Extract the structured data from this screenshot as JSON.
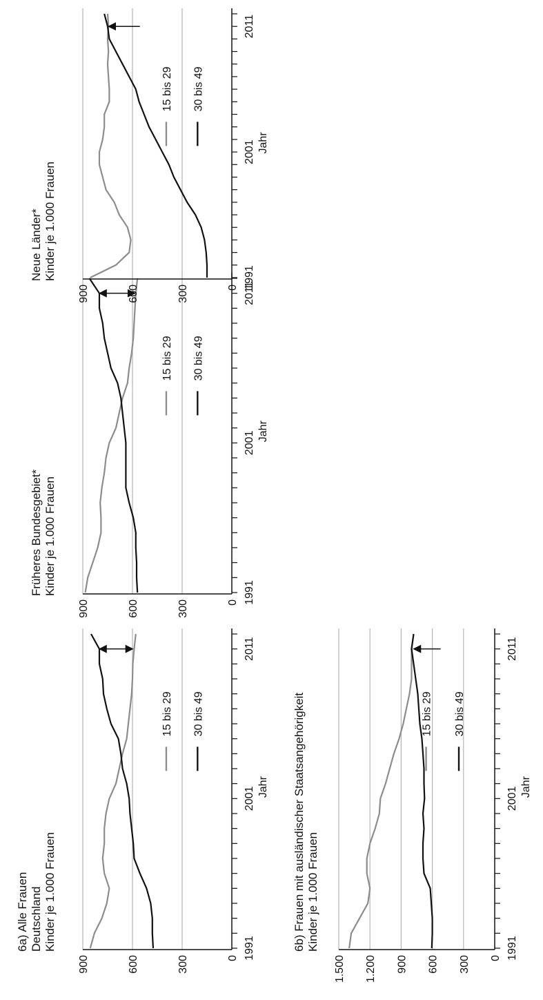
{
  "colors": {
    "series_15_29": "#8c8c8c",
    "series_30_49": "#111111",
    "grid": "#b5b5b5",
    "axis": "#111111"
  },
  "chart_data": [
    {
      "id": "chart-6a",
      "type": "line",
      "title": "6a) Alle Frauen",
      "subtitle": "Deutschland",
      "ylabel": "Kinder je 1.000 Frauen",
      "xlabel": "Jahr",
      "ylim": [
        0,
        900
      ],
      "yticks": [
        0,
        300,
        600,
        900
      ],
      "ytick_labels": [
        "0",
        "300",
        "600",
        "900"
      ],
      "grid": true,
      "xlim": [
        1991,
        2012
      ],
      "xticks_labeled": [
        1991,
        2001,
        2011
      ],
      "legend": {
        "position": "right",
        "entries": [
          {
            "label": "15 bis 29",
            "series": "15_29"
          },
          {
            "label": "30 bis 49",
            "series": "30_49"
          }
        ]
      },
      "arrow": {
        "year": 2011,
        "from": 800,
        "to": 598,
        "style": "double"
      },
      "series": [
        {
          "name": "15 bis 29",
          "key": "15_29",
          "x": [
            1991,
            1992,
            1993,
            1994,
            1995,
            1996,
            1997,
            1998,
            1999,
            2000,
            2001,
            2002,
            2003,
            2004,
            2005,
            2006,
            2007,
            2008,
            2009,
            2010,
            2011,
            2012
          ],
          "y": [
            855,
            830,
            785,
            755,
            740,
            770,
            780,
            770,
            770,
            760,
            740,
            700,
            680,
            660,
            635,
            625,
            615,
            605,
            600,
            598,
            590,
            580
          ]
        },
        {
          "name": "30 bis 49",
          "key": "30_49",
          "x": [
            1991,
            1992,
            1993,
            1994,
            1995,
            1996,
            1997,
            1998,
            1999,
            2000,
            2001,
            2002,
            2003,
            2004,
            2005,
            2006,
            2007,
            2008,
            2009,
            2010,
            2011,
            2012
          ],
          "y": [
            475,
            480,
            480,
            490,
            515,
            555,
            590,
            595,
            605,
            615,
            620,
            635,
            660,
            670,
            685,
            730,
            755,
            775,
            780,
            800,
            800,
            850
          ]
        }
      ]
    },
    {
      "id": "chart-west",
      "type": "line",
      "title": "Früheres Bundesgebiet*",
      "ylabel": "Kinder je 1.000 Frauen",
      "xlabel": "Jahr",
      "ylim": [
        0,
        900
      ],
      "yticks": [
        0,
        300,
        600,
        900
      ],
      "ytick_labels": [
        "0",
        "300",
        "600",
        "900"
      ],
      "grid": true,
      "xlim": [
        1991,
        2012
      ],
      "xticks_labeled": [
        1991,
        2001,
        2011
      ],
      "legend": {
        "position": "right",
        "entries": [
          {
            "label": "15 bis 29",
            "series": "15_29"
          },
          {
            "label": "30 bis 49",
            "series": "30_49"
          }
        ]
      },
      "arrow": {
        "year": 2011,
        "from": 800,
        "to": 585,
        "style": "double"
      },
      "series": [
        {
          "name": "15 bis 29",
          "key": "15_29",
          "x": [
            1991,
            1992,
            1993,
            1994,
            1995,
            1996,
            1997,
            1998,
            1999,
            2000,
            2001,
            2002,
            2003,
            2004,
            2005,
            2006,
            2007,
            2008,
            2009,
            2010,
            2011,
            2012
          ],
          "y": [
            885,
            870,
            840,
            810,
            790,
            790,
            795,
            785,
            770,
            760,
            740,
            700,
            680,
            660,
            630,
            620,
            605,
            595,
            590,
            585,
            580,
            570
          ]
        },
        {
          "name": "30 bis 49",
          "key": "30_49",
          "x": [
            1991,
            1992,
            1993,
            1994,
            1995,
            1996,
            1997,
            1998,
            1999,
            2000,
            2001,
            2002,
            2003,
            2004,
            2005,
            2006,
            2007,
            2008,
            2009,
            2010,
            2011,
            2012
          ],
          "y": [
            570,
            575,
            575,
            580,
            580,
            595,
            620,
            640,
            640,
            640,
            640,
            650,
            660,
            670,
            690,
            730,
            750,
            770,
            780,
            800,
            800,
            860
          ]
        }
      ]
    },
    {
      "id": "chart-ost",
      "type": "line",
      "title": "Neue Länder*",
      "ylabel": "Kinder je 1.000 Frauen",
      "xlabel": "Jahr",
      "ylim": [
        0,
        900
      ],
      "yticks": [
        0,
        300,
        600,
        900
      ],
      "ytick_labels": [
        "0",
        "300",
        "600",
        "900"
      ],
      "grid": true,
      "xlim": [
        1991,
        2012
      ],
      "xticks_labeled": [
        1991,
        2001,
        2011
      ],
      "legend": {
        "position": "right",
        "entries": [
          {
            "label": "15 bis 29",
            "series": "15_29"
          },
          {
            "label": "30 bis 49",
            "series": "30_49"
          }
        ]
      },
      "arrow": {
        "year": 2011,
        "from": 555,
        "to": 745,
        "style": "single"
      },
      "series": [
        {
          "name": "15 bis 29",
          "key": "15_29",
          "x": [
            1991,
            1992,
            1993,
            1994,
            1995,
            1996,
            1997,
            1998,
            1999,
            2000,
            2001,
            2002,
            2003,
            2004,
            2005,
            2006,
            2007,
            2008,
            2009,
            2010,
            2011,
            2012
          ],
          "y": [
            855,
            700,
            620,
            610,
            630,
            680,
            710,
            760,
            780,
            800,
            800,
            780,
            770,
            770,
            740,
            740,
            745,
            750,
            745,
            750,
            745,
            750
          ]
        },
        {
          "name": "30 bis 49",
          "key": "30_49",
          "x": [
            1991,
            1992,
            1993,
            1994,
            1995,
            1996,
            1997,
            1998,
            1999,
            2000,
            2001,
            2002,
            2003,
            2004,
            2005,
            2006,
            2007,
            2008,
            2009,
            2010,
            2011,
            2012
          ],
          "y": [
            150,
            150,
            155,
            165,
            185,
            220,
            270,
            310,
            350,
            380,
            420,
            460,
            500,
            530,
            560,
            580,
            620,
            660,
            700,
            740,
            750,
            770
          ]
        }
      ]
    },
    {
      "id": "chart-6b",
      "type": "line",
      "title": "6b) Frauen mit ausländischer Staatsangehörigkeit",
      "ylabel": "Kinder je 1.000 Frauen",
      "xlabel": "Jahr",
      "ylim": [
        0,
        1500
      ],
      "yticks": [
        0,
        300,
        600,
        900,
        1200,
        1500
      ],
      "ytick_labels": [
        "0",
        "300",
        "600",
        "900",
        "1.200",
        "1.500"
      ],
      "grid": true,
      "xlim": [
        1991,
        2012
      ],
      "xticks_labeled": [
        1991,
        2001,
        2011
      ],
      "legend": {
        "position": "right",
        "entries": [
          {
            "label": "15 bis 29",
            "series": "15_29"
          },
          {
            "label": "30 bis 49",
            "series": "30_49"
          }
        ]
      },
      "arrow": {
        "year": 2011,
        "from": 520,
        "to": 780,
        "style": "single"
      },
      "series": [
        {
          "name": "15 bis 29",
          "key": "15_29",
          "x": [
            1991,
            1992,
            1993,
            1994,
            1995,
            1996,
            1997,
            1998,
            1999,
            2000,
            2001,
            2002,
            2003,
            2004,
            2005,
            2006,
            2007,
            2008,
            2009,
            2010,
            2011,
            2012
          ],
          "y": [
            1400,
            1380,
            1300,
            1220,
            1200,
            1230,
            1230,
            1200,
            1150,
            1110,
            1100,
            1050,
            1010,
            970,
            920,
            880,
            850,
            820,
            800,
            800,
            800,
            780
          ]
        },
        {
          "name": "30 bis 49",
          "key": "30_49",
          "x": [
            1991,
            1992,
            1993,
            1994,
            1995,
            1996,
            1997,
            1998,
            1999,
            2000,
            2001,
            2002,
            2003,
            2004,
            2005,
            2006,
            2007,
            2008,
            2009,
            2010,
            2011,
            2012
          ],
          "y": [
            605,
            600,
            600,
            610,
            620,
            680,
            690,
            690,
            680,
            690,
            675,
            680,
            680,
            690,
            700,
            720,
            730,
            740,
            760,
            780,
            800,
            780
          ]
        }
      ]
    }
  ]
}
